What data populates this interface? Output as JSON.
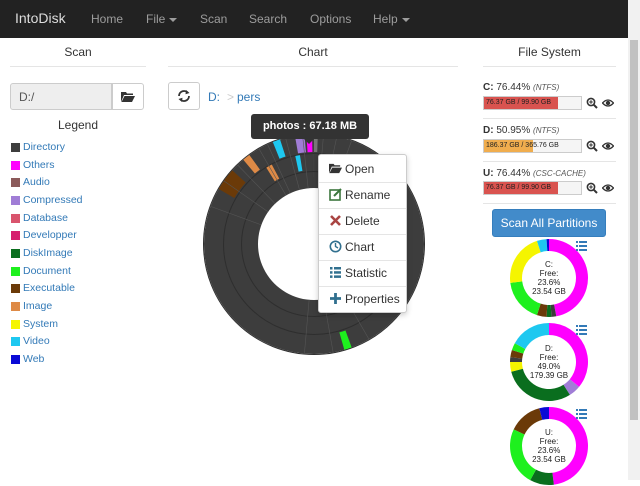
{
  "navbar": {
    "brand": "IntoDisk",
    "items": [
      {
        "label": "Home",
        "dropdown": false
      },
      {
        "label": "File",
        "dropdown": true
      },
      {
        "label": "Scan",
        "dropdown": false
      },
      {
        "label": "Search",
        "dropdown": false
      },
      {
        "label": "Options",
        "dropdown": false
      },
      {
        "label": "Help",
        "dropdown": true
      }
    ]
  },
  "scan": {
    "header": "Scan",
    "path_value": "D:/",
    "legend_title": "Legend",
    "legend": [
      {
        "label": "Directory",
        "color": "#3d3d3d"
      },
      {
        "label": "Others",
        "color": "#ff00ff"
      },
      {
        "label": "Audio",
        "color": "#8b5a5a"
      },
      {
        "label": "Compressed",
        "color": "#a07dd6"
      },
      {
        "label": "Database",
        "color": "#d9546d"
      },
      {
        "label": "Developper",
        "color": "#d61e6e"
      },
      {
        "label": "DiskImage",
        "color": "#0a6e1e"
      },
      {
        "label": "Document",
        "color": "#1ef01e"
      },
      {
        "label": "Executable",
        "color": "#6b3a08"
      },
      {
        "label": "Image",
        "color": "#de8a46"
      },
      {
        "label": "System",
        "color": "#f5f500"
      },
      {
        "label": "Video",
        "color": "#1ec8f0"
      },
      {
        "label": "Web",
        "color": "#0a0ad6"
      }
    ]
  },
  "chart": {
    "header": "Chart",
    "breadcrumb": [
      {
        "label": "D:"
      },
      {
        "label": "pers"
      }
    ],
    "breadcrumb_separator": ">",
    "tooltip": "photos : 67.18 MB",
    "context_menu": [
      {
        "label": "Open",
        "icon": "folder-open-icon"
      },
      {
        "label": "Rename",
        "icon": "edit-icon"
      },
      {
        "label": "Delete",
        "icon": "delete-icon"
      },
      {
        "label": "Chart",
        "icon": "clock-chart-icon"
      },
      {
        "label": "Statistic",
        "icon": "list-icon"
      },
      {
        "label": "Properties",
        "icon": "plus-icon"
      }
    ],
    "colors": {
      "ring": "#3d3d3d",
      "segment_line": "#555555"
    }
  },
  "filesystem": {
    "header": "File System",
    "drives": [
      {
        "drive": "C:",
        "percent": "76.44%",
        "fs": "(NTFS)",
        "used_pct": 76.44,
        "bar_text": "76.37 GB / 99.90 GB",
        "bar_color": "#d9534f"
      },
      {
        "drive": "D:",
        "percent": "50.95%",
        "fs": "(NTFS)",
        "used_pct": 50.95,
        "bar_text": "186.37 GB / 365.76 GB",
        "bar_color": "#f0ad4e"
      },
      {
        "drive": "U:",
        "percent": "76.44%",
        "fs": "(CSC-CACHE)",
        "used_pct": 76.44,
        "bar_text": "76.37 GB / 99.90 GB",
        "bar_color": "#d9534f"
      }
    ],
    "scan_all_label": "Scan All Partitions",
    "pies": [
      {
        "drive": "C:",
        "free_label": "Free:",
        "free_pct": "23.6%",
        "free_size": "23.54 GB"
      },
      {
        "drive": "D:",
        "free_label": "Free:",
        "free_pct": "49.0%",
        "free_size": "179.39 GB"
      },
      {
        "drive": "U:",
        "free_label": "Free:",
        "free_pct": "23.6%",
        "free_size": "23.54 GB"
      }
    ]
  }
}
